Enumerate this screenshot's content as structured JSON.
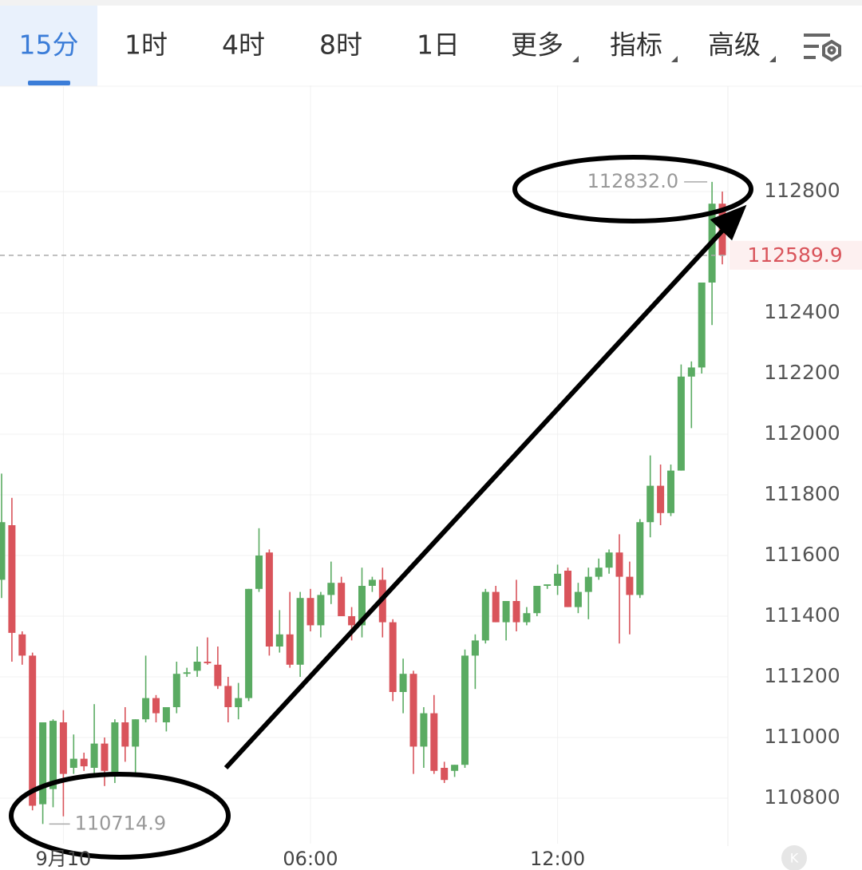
{
  "tabs": [
    "15分",
    "1时",
    "4时",
    "8时",
    "1日",
    "更多",
    "指标",
    "高级"
  ],
  "chart_data": {
    "type": "candlestick",
    "categories": [
      null,
      null,
      null,
      null,
      null,
      null,
      "9月10",
      null,
      null,
      null,
      null,
      null,
      null,
      null,
      null,
      null,
      null,
      null,
      null,
      null,
      null,
      null,
      null,
      null,
      null,
      null,
      null,
      null,
      null,
      null,
      "06:00",
      null,
      null,
      null,
      null,
      null,
      null,
      null,
      null,
      null,
      null,
      null,
      null,
      null,
      null,
      null,
      null,
      null,
      null,
      null,
      null,
      null,
      null,
      null,
      "12:00",
      null,
      null,
      null,
      null,
      null,
      null,
      null,
      null,
      null,
      null,
      null,
      null,
      null,
      null,
      null,
      null
    ],
    "open": [
      111520,
      111700,
      111340,
      111270,
      110780,
      110830,
      111050,
      110900,
      110930,
      110900,
      110980,
      110880,
      111050,
      110970,
      111060,
      111130,
      111050,
      111100,
      111210,
      111220,
      111250,
      111240,
      111170,
      111100,
      111130,
      111490,
      111610,
      111300,
      111340,
      111240,
      111460,
      111370,
      111470,
      111510,
      111400,
      111370,
      111500,
      111520,
      111380,
      111150,
      111210,
      110970,
      111080,
      110900,
      110890,
      110910,
      111270,
      111320,
      111480,
      111380,
      111450,
      111380,
      111410,
      111500,
      111500,
      111550,
      111430,
      111480,
      111530,
      111560,
      111610,
      111530,
      111470,
      111710,
      111830,
      111740,
      111880,
      112190,
      112220,
      112500,
      112760
    ],
    "high": [
      111870,
      111790,
      111350,
      111280,
      111050,
      111060,
      111090,
      111010,
      110950,
      111110,
      111000,
      111060,
      111100,
      111060,
      111270,
      111140,
      111100,
      111250,
      111230,
      111300,
      111330,
      111300,
      111200,
      111180,
      111490,
      111690,
      111620,
      111420,
      111480,
      111480,
      111490,
      111480,
      111580,
      111530,
      111430,
      111560,
      111530,
      111560,
      111390,
      111260,
      111220,
      111100,
      111140,
      110920,
      110910,
      111290,
      111340,
      111490,
      111500,
      111450,
      111520,
      111430,
      111500,
      111500,
      111570,
      111560,
      111510,
      111560,
      111590,
      111620,
      111670,
      111580,
      111720,
      111930,
      111900,
      111900,
      112230,
      112240,
      112500,
      112832,
      112800
    ],
    "low": [
      111460,
      111250,
      111240,
      110760,
      110714.9,
      110770,
      110740,
      110880,
      110890,
      110880,
      110840,
      110850,
      110920,
      110870,
      111050,
      111050,
      111020,
      111080,
      111200,
      111200,
      111240,
      111160,
      111050,
      111060,
      111120,
      111480,
      111270,
      111280,
      111230,
      111200,
      111350,
      111330,
      111440,
      111400,
      111320,
      111330,
      111480,
      111330,
      111120,
      111080,
      110880,
      110900,
      110880,
      110850,
      110870,
      110900,
      111160,
      111310,
      111380,
      111320,
      111350,
      111370,
      111400,
      111490,
      111470,
      111430,
      111410,
      111390,
      111520,
      111540,
      111310,
      111340,
      111460,
      111660,
      111700,
      111730,
      111880,
      112020,
      112200,
      112360,
      112560
    ],
    "close": [
      111710,
      111345,
      111270,
      110775,
      111050,
      111055,
      110880,
      110930,
      110905,
      110980,
      110890,
      111050,
      110970,
      111060,
      111130,
      111080,
      111100,
      111210,
      111215,
      111250,
      111245,
      111170,
      111100,
      111130,
      111490,
      111600,
      111300,
      111340,
      111240,
      111460,
      111370,
      111470,
      111510,
      111400,
      111370,
      111500,
      111520,
      111380,
      111150,
      111210,
      110970,
      111080,
      110890,
      110860,
      110910,
      111270,
      111320,
      111480,
      111380,
      111450,
      111380,
      111410,
      111500,
      111505,
      111540,
      111430,
      111480,
      111530,
      111560,
      111610,
      111530,
      111470,
      111710,
      111830,
      111740,
      111880,
      112190,
      112220,
      112500,
      112760,
      112589.9
    ],
    "up_color": "#5aab62",
    "down_color": "#d9545b",
    "high_label": "112832.0",
    "low_label": "110714.9",
    "last_price": {
      "value": 112589.9,
      "label": "112589.9"
    },
    "ylim": [
      110650,
      113150
    ],
    "yticks": [
      110800,
      111000,
      111200,
      111400,
      111600,
      111800,
      112000,
      112200,
      112400,
      112800
    ],
    "grid": true
  }
}
